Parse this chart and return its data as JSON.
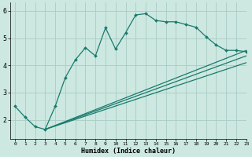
{
  "background_color": "#cce8e0",
  "line_color": "#1a7a6e",
  "grid_color": "#aaccC4",
  "xlabel": "Humidex (Indice chaleur)",
  "xlim": [
    -0.5,
    23
  ],
  "ylim": [
    1.3,
    6.3
  ],
  "yticks": [
    2,
    3,
    4,
    5,
    6
  ],
  "xticks": [
    0,
    1,
    2,
    3,
    4,
    5,
    6,
    7,
    8,
    9,
    10,
    11,
    12,
    13,
    14,
    15,
    16,
    17,
    18,
    19,
    20,
    21,
    22,
    23
  ],
  "series1_x": [
    0,
    1,
    2,
    3,
    4,
    5,
    6,
    7,
    8,
    9,
    10,
    11,
    12,
    13,
    14,
    15,
    16,
    17,
    18,
    19,
    20,
    21,
    22,
    23
  ],
  "series1_y": [
    2.5,
    2.1,
    1.75,
    1.65,
    2.5,
    3.55,
    4.2,
    4.65,
    4.35,
    5.38,
    4.6,
    5.2,
    5.85,
    5.9,
    5.65,
    5.6,
    5.6,
    5.5,
    5.4,
    5.05,
    4.75,
    4.55,
    4.55,
    4.5
  ],
  "series2_x": [
    3,
    23
  ],
  "series2_y": [
    1.65,
    4.55
  ],
  "series3_x": [
    3,
    23
  ],
  "series3_y": [
    1.65,
    4.35
  ],
  "series4_x": [
    3,
    23
  ],
  "series4_y": [
    1.65,
    4.1
  ]
}
